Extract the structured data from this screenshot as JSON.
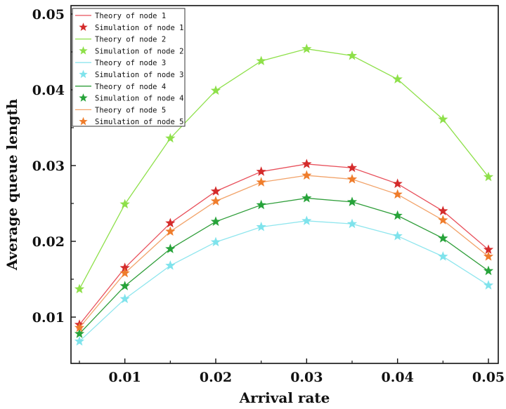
{
  "chart_data": {
    "type": "line",
    "xlabel": "Arrival rate",
    "ylabel": "Average queue length",
    "xlim": [
      0.005,
      0.05
    ],
    "ylim": [
      0.005,
      0.05
    ],
    "x": [
      0.005,
      0.01,
      0.015,
      0.02,
      0.025,
      0.03,
      0.035,
      0.04,
      0.045,
      0.05
    ],
    "x_ticks": [
      0.01,
      0.02,
      0.03,
      0.04,
      0.05
    ],
    "x_tick_labels": [
      "0.01",
      "0.02",
      "0.03",
      "0.04",
      "0.05"
    ],
    "y_ticks": [
      0.01,
      0.02,
      0.03,
      0.04,
      0.05
    ],
    "y_tick_labels": [
      "0.01",
      "0.02",
      "0.03",
      "0.04",
      "0.05"
    ],
    "grid": false,
    "legend_position": "top-left",
    "series": [
      {
        "node": "1",
        "theory_label": "Theory of node 1",
        "simulation_label": "Simulation of node 1",
        "line_color": "#e8505b",
        "marker_color": "#d42b2b",
        "values": [
          0.009,
          0.0165,
          0.0224,
          0.0266,
          0.0292,
          0.0302,
          0.0297,
          0.0276,
          0.024,
          0.0189
        ]
      },
      {
        "node": "2",
        "theory_label": "Theory of node 2",
        "simulation_label": "Simulation of node 2",
        "line_color": "#8ee04a",
        "marker_color": "#8ee04a",
        "values": [
          0.0137,
          0.0249,
          0.0336,
          0.0399,
          0.0438,
          0.0454,
          0.0445,
          0.0414,
          0.0361,
          0.0285
        ]
      },
      {
        "node": "3",
        "theory_label": "Theory of node 3",
        "simulation_label": "Simulation of node 3",
        "line_color": "#8fe6ee",
        "marker_color": "#7fe3ec",
        "values": [
          0.0068,
          0.0124,
          0.0168,
          0.0199,
          0.0219,
          0.0227,
          0.0223,
          0.0207,
          0.018,
          0.0142
        ]
      },
      {
        "node": "4",
        "theory_label": "Theory of node 4",
        "simulation_label": "Simulation of node 4",
        "line_color": "#2f9e3a",
        "marker_color": "#27a33a",
        "values": [
          0.0078,
          0.0141,
          0.019,
          0.0226,
          0.0248,
          0.0257,
          0.0252,
          0.0234,
          0.0204,
          0.0161
        ]
      },
      {
        "node": "5",
        "theory_label": "Theory of node 5",
        "simulation_label": "Simulation of node 5",
        "line_color": "#f2a36a",
        "marker_color": "#ef7d2c",
        "values": [
          0.0086,
          0.0158,
          0.0213,
          0.0253,
          0.0278,
          0.0287,
          0.0282,
          0.0262,
          0.0228,
          0.018
        ]
      }
    ]
  }
}
